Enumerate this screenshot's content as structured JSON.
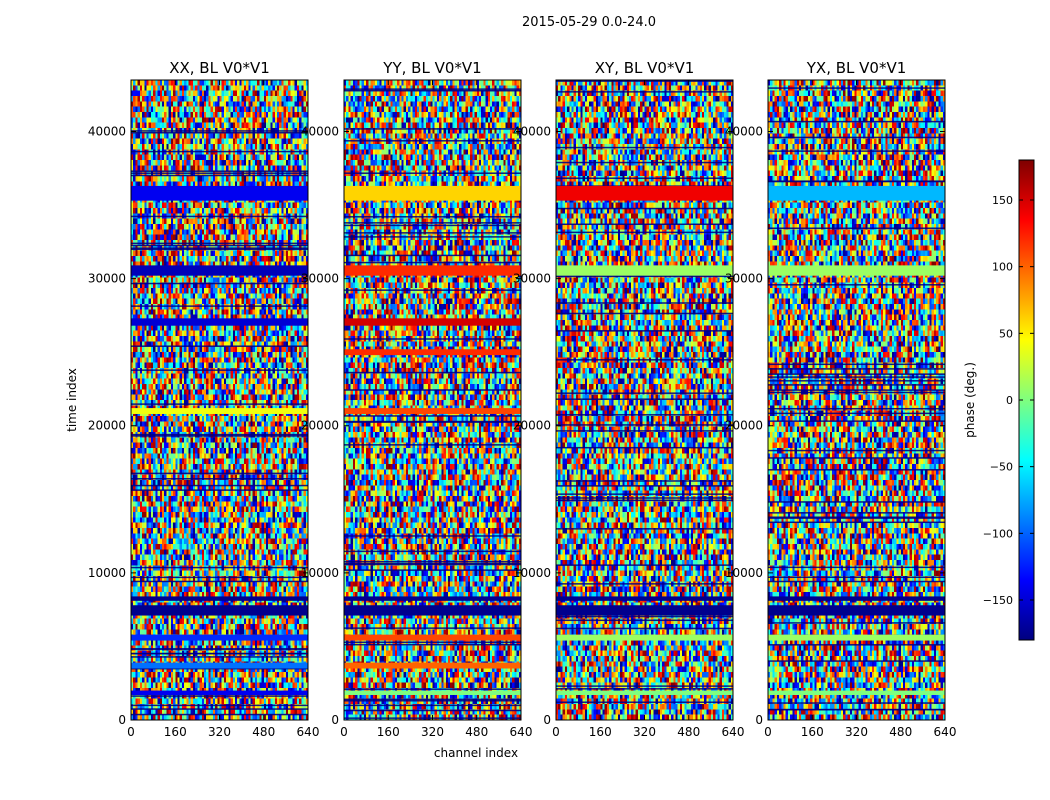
{
  "figure": {
    "suptitle": "2015-05-29 0.0-24.0",
    "xlabel": "channel index",
    "ylabel": "time index"
  },
  "colorbar": {
    "label": "phase (deg.)",
    "range": [
      -180,
      180
    ],
    "ticks": [
      150,
      100,
      50,
      0,
      -50,
      -100,
      -150
    ],
    "tick_labels": [
      "150",
      "100",
      "50",
      "0",
      "−50",
      "−100",
      "−150"
    ],
    "colormap": "jet",
    "colors": [
      "#00007f",
      "#0000ff",
      "#007fff",
      "#00ffff",
      "#7fff7f",
      "#ffff00",
      "#ff7f00",
      "#ff0000",
      "#7f0000"
    ]
  },
  "chart_data": [
    {
      "type": "heatmap",
      "title": "XX, BL V0*V1",
      "xlim": [
        0,
        640
      ],
      "ylim": [
        0,
        43500
      ],
      "xticks": [
        0,
        160,
        320,
        480,
        640
      ],
      "yticks": [
        0,
        10000,
        20000,
        30000,
        40000
      ],
      "bands": [
        {
          "y": [
            35300,
            36300
          ],
          "value": -140
        },
        {
          "y": [
            30200,
            30900
          ],
          "value": -160
        },
        {
          "y": [
            26800,
            27300
          ],
          "value": -150
        },
        {
          "y": [
            20800,
            21200
          ],
          "value": 40
        },
        {
          "y": [
            7100,
            7800
          ],
          "value": -175
        },
        {
          "y": [
            8100,
            8400
          ],
          "value": -175
        },
        {
          "y": [
            5400,
            5800
          ],
          "value": -120
        },
        {
          "y": [
            3500,
            3900
          ],
          "value": -95
        },
        {
          "y": [
            1700,
            2000
          ],
          "value": -140
        }
      ]
    },
    {
      "type": "heatmap",
      "title": "YY, BL V0*V1",
      "xlim": [
        0,
        640
      ],
      "ylim": [
        0,
        43500
      ],
      "xticks": [
        0,
        160,
        320,
        480,
        640
      ],
      "yticks": [
        0,
        10000,
        20000,
        30000,
        40000
      ],
      "bands": [
        {
          "y": [
            35300,
            36300
          ],
          "value": 60
        },
        {
          "y": [
            30200,
            30900
          ],
          "value": 120
        },
        {
          "y": [
            26800,
            27300
          ],
          "value": 150
        },
        {
          "y": [
            24800,
            25200
          ],
          "value": 120
        },
        {
          "y": [
            20800,
            21200
          ],
          "value": 110
        },
        {
          "y": [
            7100,
            7800
          ],
          "value": -175
        },
        {
          "y": [
            8100,
            8400
          ],
          "value": -175
        },
        {
          "y": [
            5400,
            5800
          ],
          "value": 110
        },
        {
          "y": [
            3500,
            3900
          ],
          "value": 100
        },
        {
          "y": [
            1700,
            2000
          ],
          "value": 0
        }
      ]
    },
    {
      "type": "heatmap",
      "title": "XY, BL V0*V1",
      "xlim": [
        0,
        640
      ],
      "ylim": [
        0,
        43500
      ],
      "xticks": [
        0,
        160,
        320,
        480,
        640
      ],
      "yticks": [
        0,
        10000,
        20000,
        30000,
        40000
      ],
      "bands": [
        {
          "y": [
            35300,
            36300
          ],
          "value": 140
        },
        {
          "y": [
            30200,
            30900
          ],
          "value": 10
        },
        {
          "y": [
            7100,
            7800
          ],
          "value": -175
        },
        {
          "y": [
            8100,
            8400
          ],
          "value": -175
        },
        {
          "y": [
            5400,
            5800
          ],
          "value": 10
        },
        {
          "y": [
            1700,
            2000
          ],
          "value": 0
        }
      ]
    },
    {
      "type": "heatmap",
      "title": "YX, BL V0*V1",
      "xlim": [
        0,
        640
      ],
      "ylim": [
        0,
        43500
      ],
      "xticks": [
        0,
        160,
        320,
        480,
        640
      ],
      "yticks": [
        0,
        10000,
        20000,
        30000,
        40000
      ],
      "bands": [
        {
          "y": [
            35300,
            36300
          ],
          "value": -70
        },
        {
          "y": [
            30200,
            30900
          ],
          "value": 10
        },
        {
          "y": [
            7100,
            7800
          ],
          "value": -175
        },
        {
          "y": [
            8100,
            8400
          ],
          "value": -175
        },
        {
          "y": [
            5400,
            5800
          ],
          "value": 10
        },
        {
          "y": [
            1700,
            2000
          ],
          "value": 0
        }
      ]
    }
  ]
}
